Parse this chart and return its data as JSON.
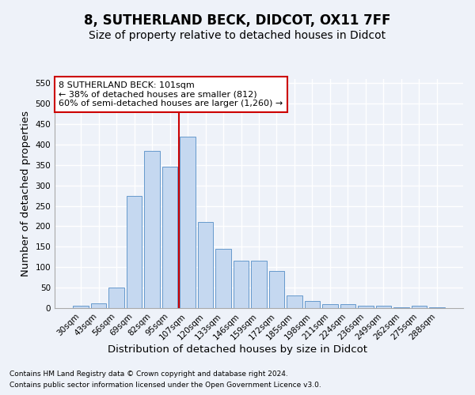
{
  "title": "8, SUTHERLAND BECK, DIDCOT, OX11 7FF",
  "subtitle": "Size of property relative to detached houses in Didcot",
  "xlabel": "Distribution of detached houses by size in Didcot",
  "ylabel": "Number of detached properties",
  "categories": [
    "30sqm",
    "43sqm",
    "56sqm",
    "69sqm",
    "82sqm",
    "95sqm",
    "107sqm",
    "120sqm",
    "133sqm",
    "146sqm",
    "159sqm",
    "172sqm",
    "185sqm",
    "198sqm",
    "211sqm",
    "224sqm",
    "236sqm",
    "249sqm",
    "262sqm",
    "275sqm",
    "288sqm"
  ],
  "values": [
    5,
    12,
    50,
    275,
    385,
    345,
    420,
    210,
    145,
    115,
    115,
    90,
    30,
    17,
    10,
    10,
    5,
    5,
    2,
    5,
    2
  ],
  "bar_color": "#c5d8f0",
  "bar_edge_color": "#6699cc",
  "vline_x": 5.5,
  "vline_color": "#cc0000",
  "annotation_text": "8 SUTHERLAND BECK: 101sqm\n← 38% of detached houses are smaller (812)\n60% of semi-detached houses are larger (1,260) →",
  "annotation_box_color": "#ffffff",
  "annotation_box_edge": "#cc0000",
  "footer1": "Contains HM Land Registry data © Crown copyright and database right 2024.",
  "footer2": "Contains public sector information licensed under the Open Government Licence v3.0.",
  "ylim": [
    0,
    560
  ],
  "yticks": [
    0,
    50,
    100,
    150,
    200,
    250,
    300,
    350,
    400,
    450,
    500,
    550
  ],
  "bg_color": "#eef2f9",
  "grid_color": "#ffffff",
  "title_fontsize": 12,
  "subtitle_fontsize": 10,
  "tick_fontsize": 7.5,
  "label_fontsize": 9.5
}
